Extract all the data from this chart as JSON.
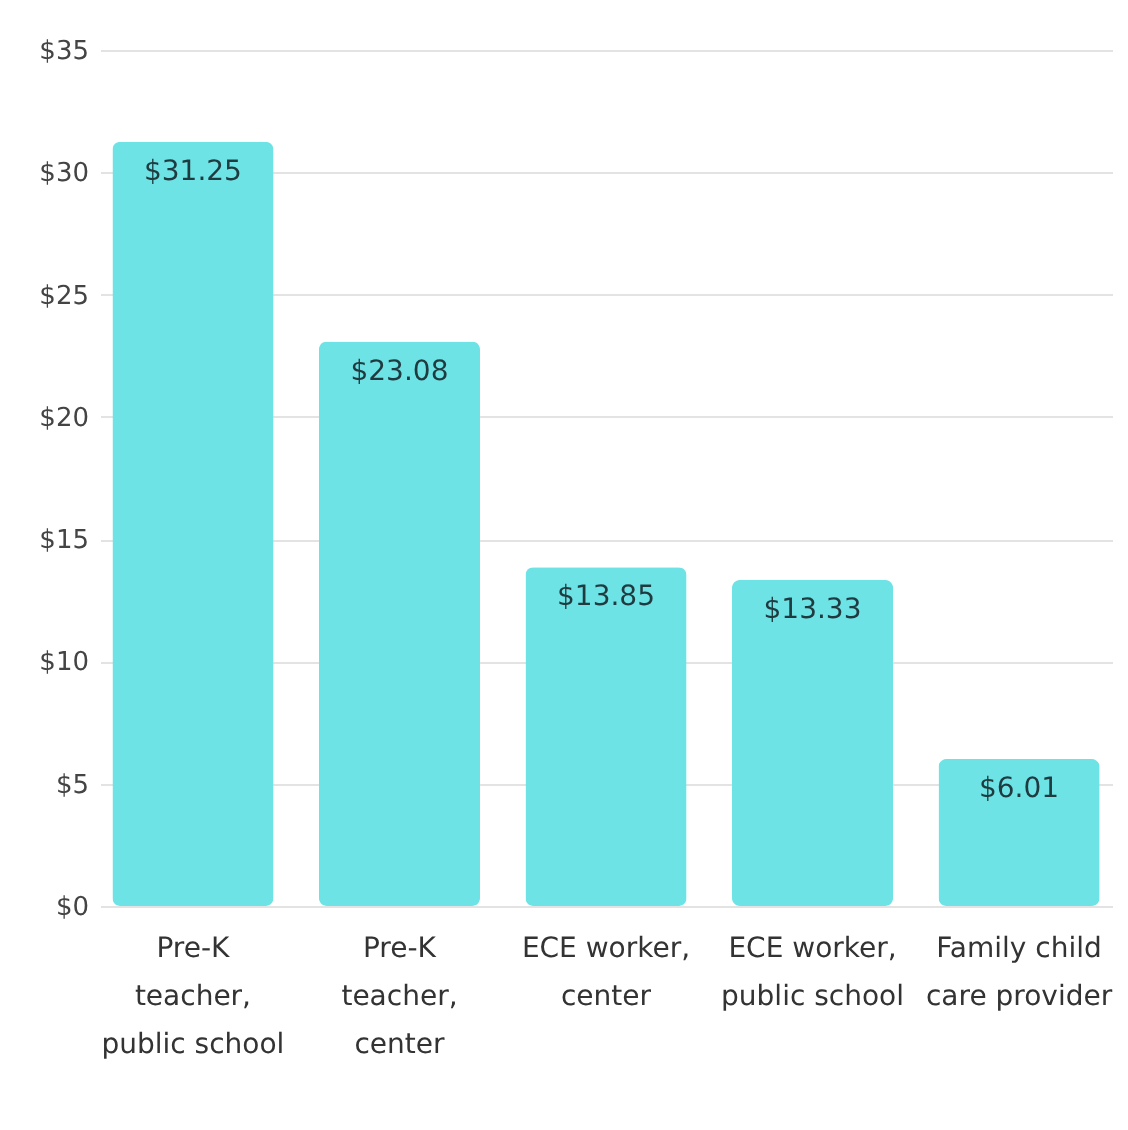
{
  "chart_data": {
    "type": "bar",
    "categories": [
      "Pre-K teacher, public school",
      "Pre-K teacher, center",
      "ECE worker, center",
      "ECE worker, public school",
      "Family child care provider"
    ],
    "values": [
      31.25,
      23.08,
      13.85,
      13.33,
      6.01
    ],
    "value_labels": [
      "$31.25",
      "$23.08",
      "$13.85",
      "$13.33",
      "$6.01"
    ],
    "color": "#6ee3e6",
    "ylim": [
      0,
      35
    ],
    "yticks": [
      {
        "value": 0,
        "label": "$0"
      },
      {
        "value": 5,
        "label": "$5"
      },
      {
        "value": 10,
        "label": "$10"
      },
      {
        "value": 15,
        "label": "$15"
      },
      {
        "value": 20,
        "label": "$20"
      },
      {
        "value": 25,
        "label": "$25"
      },
      {
        "value": 30,
        "label": "$30"
      },
      {
        "value": 35,
        "label": "$35"
      }
    ],
    "grid": "y"
  }
}
